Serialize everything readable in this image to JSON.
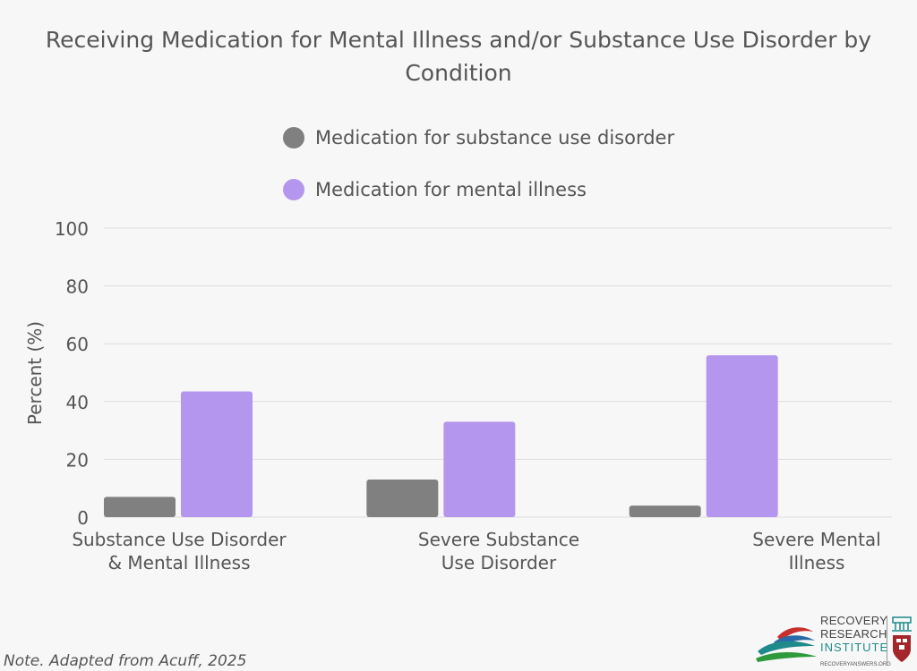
{
  "chart_data": {
    "type": "bar",
    "title": "Receiving Medication for Mental Illness and/or Substance Use Disorder by Condition",
    "title_lines": [
      "Receiving Medication for Mental Illness and/or Substance Use Disorder by",
      "Condition"
    ],
    "categories": [
      "Substance Use Disorder & Mental Illness",
      "Severe Substance Use Disorder",
      "Severe Mental Illness"
    ],
    "category_lines": [
      [
        "Substance Use Disorder",
        "& Mental Illness"
      ],
      [
        "Severe Substance",
        "Use Disorder"
      ],
      [
        "Severe Mental",
        "Illness"
      ]
    ],
    "series": [
      {
        "name": "Medication for substance use disorder",
        "color": "#808080",
        "values": [
          7,
          13,
          4
        ]
      },
      {
        "name": "Medication for mental illness",
        "color": "#b596ee",
        "values": [
          43.5,
          33,
          56
        ]
      }
    ],
    "xlabel": "",
    "ylabel": "Percent (%)",
    "ylim": [
      0,
      100
    ],
    "yticks": [
      0,
      20,
      40,
      60,
      80,
      100
    ],
    "grid": true,
    "legend_position": "top-center"
  },
  "note": "Note. Adapted from Acuff, 2025",
  "logo": {
    "line1": "RECOVERY",
    "line2": "RESEARCH",
    "line3": "INSTITUTE",
    "url": "RECOVERYANSWERS.ORG",
    "colors": {
      "red": "#c8302e",
      "teal": "#1f8a8a",
      "green": "#2f9a3c",
      "blue": "#2a6aa8"
    }
  }
}
